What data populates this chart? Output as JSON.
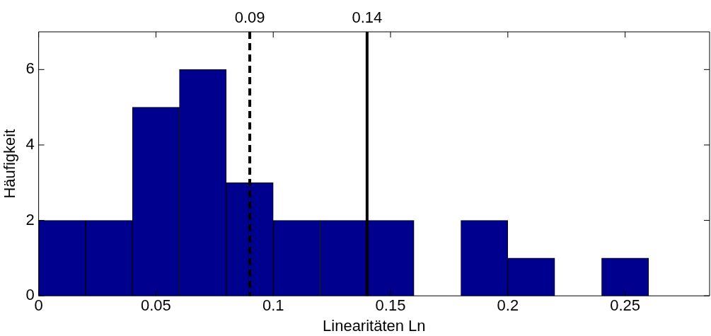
{
  "chart_data": {
    "type": "histogram",
    "xlabel": "Linearitäten Ln",
    "ylabel": "Häufigkeit",
    "bins": [
      0,
      0.02,
      0.04,
      0.06,
      0.08,
      0.1,
      0.12,
      0.14,
      0.16,
      0.18,
      0.2,
      0.22,
      0.24,
      0.26
    ],
    "values": [
      2,
      2,
      5,
      6,
      3,
      2,
      2,
      2,
      0,
      2,
      1,
      0,
      1
    ],
    "color": "#00008f",
    "xlim": [
      0,
      0.286
    ],
    "xticks": [
      0,
      0.05,
      0.1,
      0.15,
      0.2,
      0.25
    ],
    "ylim": [
      0,
      7
    ],
    "yticks": [
      0,
      2,
      4,
      6
    ],
    "ref_lines": [
      {
        "axis": "x",
        "value": 0.09,
        "label": "0.09",
        "line_style": "dashed",
        "color": "#000000"
      },
      {
        "axis": "x",
        "value": 0.14,
        "label": "0.14",
        "line_style": "solid",
        "color": "#000000"
      }
    ],
    "grid": false,
    "legend": false
  }
}
